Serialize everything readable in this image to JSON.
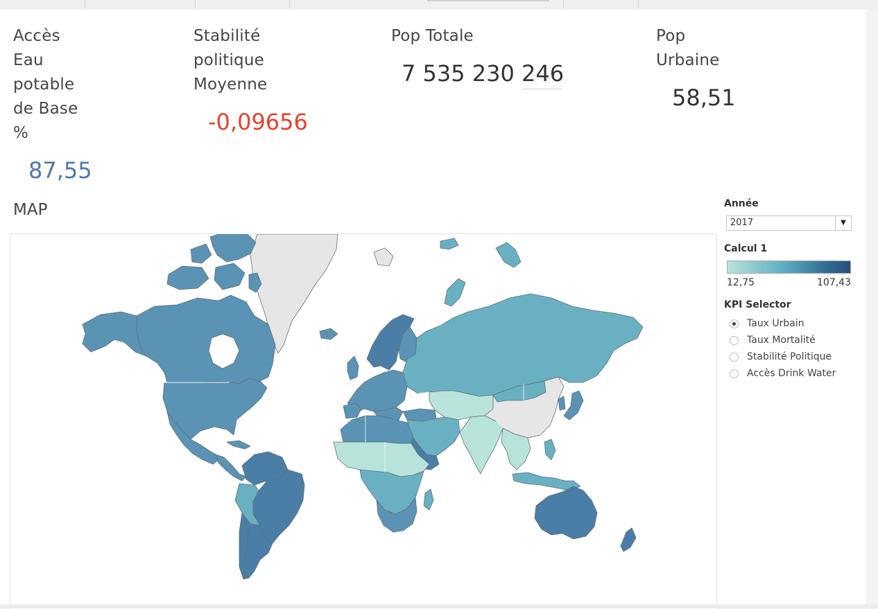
{
  "kpis": {
    "water": {
      "title_lines": [
        "Accès",
        "Eau",
        "potable",
        "de Base",
        "%"
      ],
      "value": "87,55",
      "color": "#4e79a7"
    },
    "stability": {
      "title_lines": [
        "Stabilité",
        "politique",
        "Moyenne"
      ],
      "value": "-0,09656",
      "color": "#e8412c"
    },
    "population": {
      "title_lines": [
        "Pop Totale"
      ],
      "value": "7 535 230 246",
      "color": "#333333"
    },
    "urban": {
      "title_lines": [
        "Pop",
        "Urbaine"
      ],
      "value": "58,51",
      "color": "#333333"
    }
  },
  "map": {
    "title": "MAP",
    "colors": {
      "no_data": "#e6e6e6",
      "low": "#b8e3da",
      "mid": "#6ab0c3",
      "high": "#5a93b4",
      "max": "#4a7ea6"
    }
  },
  "filters": {
    "year": {
      "label": "Année",
      "value": "2017"
    },
    "legend": {
      "label": "Calcul 1",
      "min": "12,75",
      "max": "107,43"
    },
    "kpi_selector": {
      "label": "KPI Selector",
      "selected": "Taux Urbain",
      "options": [
        "Taux Urbain",
        "Taux Mortalité",
        "Stabilité Politique",
        "Accès Drink Water"
      ]
    }
  }
}
